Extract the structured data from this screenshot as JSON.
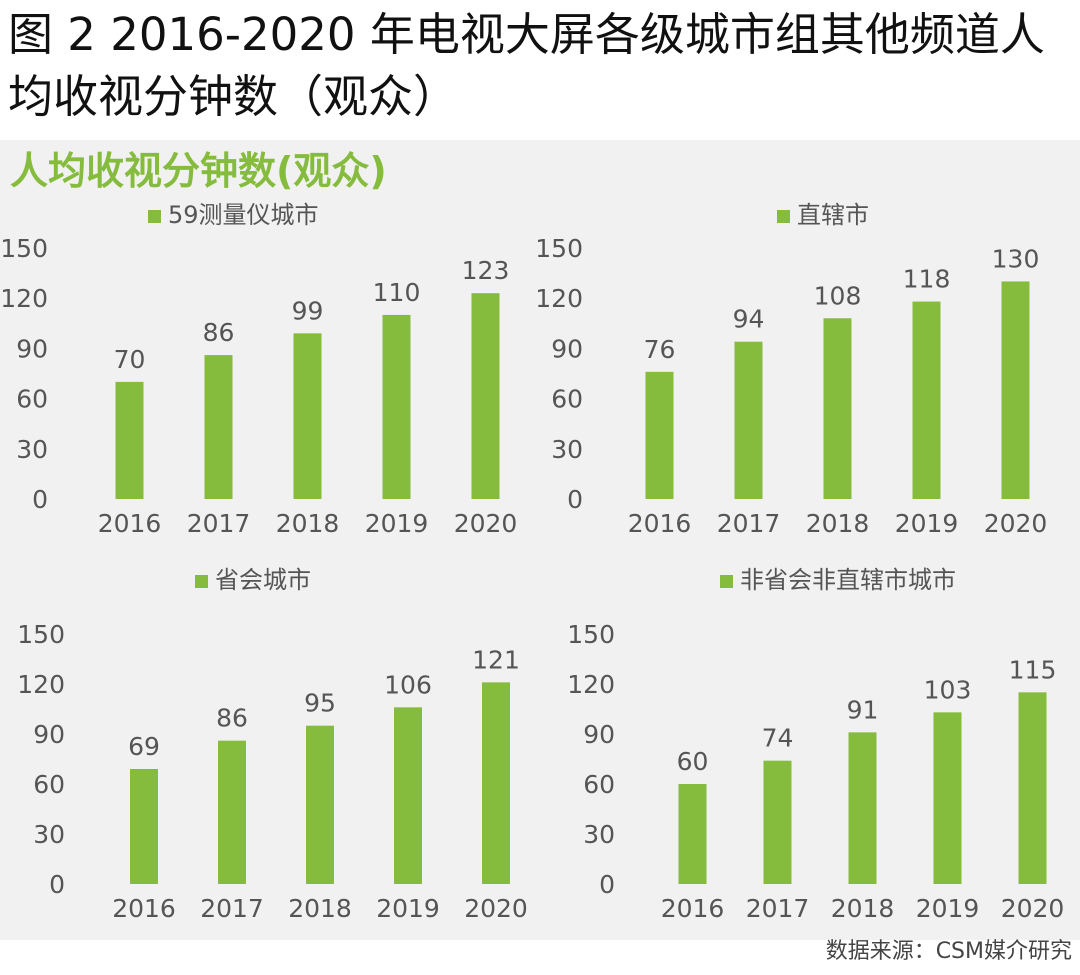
{
  "figure": {
    "title": "图 2 2016-2020 年电视大屏各级城市组其他频道人均收视分钟数（观众）",
    "heading": "人均收视分钟数(观众)",
    "source": "数据来源：CSM媒介研究"
  },
  "colors": {
    "bar": "#86bc3e",
    "axis_text": "#555555",
    "label_text": "#555555",
    "grid": "#d9d9d9",
    "panel_bg": "#f1f1f1"
  },
  "chart_data": [
    {
      "type": "bar",
      "legend": "59测量仪城市",
      "categories": [
        "2016",
        "2017",
        "2018",
        "2019",
        "2020"
      ],
      "values": [
        70,
        86,
        99,
        110,
        123
      ],
      "yticks": [
        0,
        30,
        60,
        90,
        120,
        150
      ],
      "ylim": [
        0,
        150
      ],
      "grid": false
    },
    {
      "type": "bar",
      "legend": "直辖市",
      "categories": [
        "2016",
        "2017",
        "2018",
        "2019",
        "2020"
      ],
      "values": [
        76,
        94,
        108,
        118,
        130
      ],
      "yticks": [
        0,
        30,
        60,
        90,
        120,
        150
      ],
      "ylim": [
        0,
        150
      ],
      "grid": false
    },
    {
      "type": "bar",
      "legend": "省会城市",
      "categories": [
        "2016",
        "2017",
        "2018",
        "2019",
        "2020"
      ],
      "values": [
        69,
        86,
        95,
        106,
        121
      ],
      "yticks": [
        0,
        30,
        60,
        90,
        120,
        150
      ],
      "ylim": [
        0,
        150
      ],
      "grid": false
    },
    {
      "type": "bar",
      "legend": "非省会非直辖市城市",
      "categories": [
        "2016",
        "2017",
        "2018",
        "2019",
        "2020"
      ],
      "values": [
        60,
        74,
        91,
        103,
        115
      ],
      "yticks": [
        0,
        30,
        60,
        90,
        120,
        150
      ],
      "ylim": [
        0,
        150
      ],
      "grid": false
    }
  ]
}
